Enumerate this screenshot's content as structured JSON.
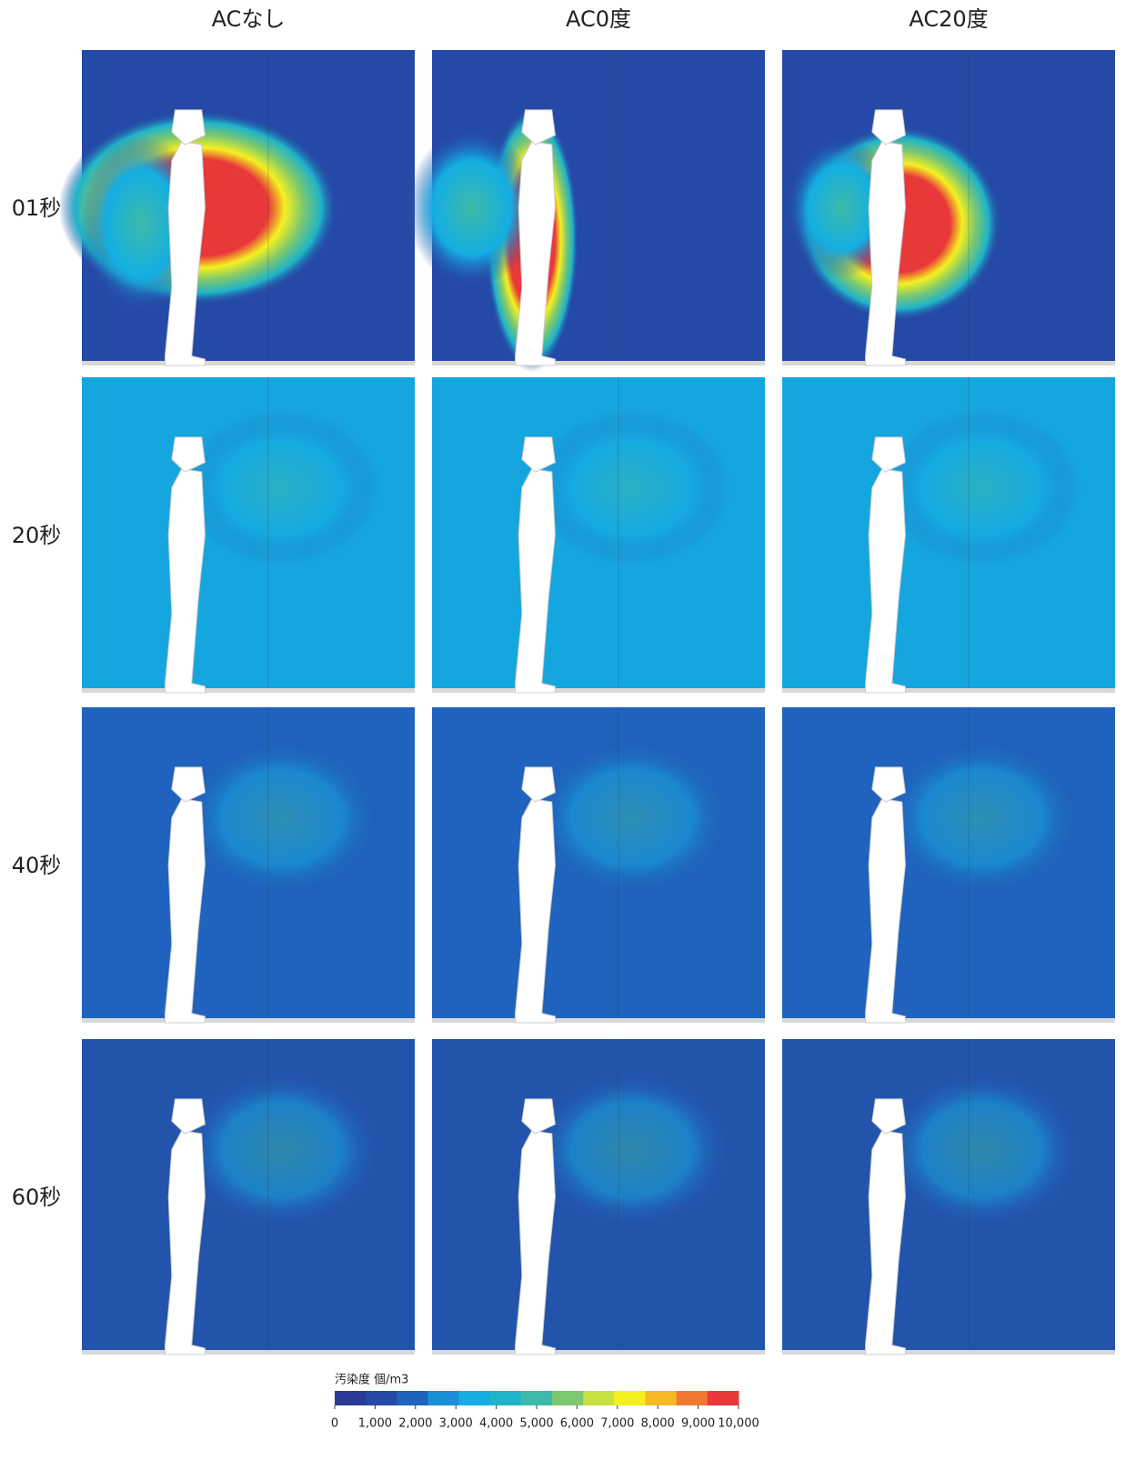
{
  "columns": [
    "ACなし",
    "AC0度",
    "AC20度"
  ],
  "rows": [
    "01秒",
    "20秒",
    "40秒",
    "60秒"
  ],
  "colorbar": {
    "label": "汚染度 個/m3",
    "colors": [
      "#2b3b95",
      "#2549a6",
      "#1f63be",
      "#1a8fd8",
      "#14aee3",
      "#1fb3c9",
      "#3dbaa8",
      "#7cc870",
      "#c8e040",
      "#f4f020",
      "#f6b825",
      "#f07830",
      "#e8383a"
    ],
    "ticks": [
      0,
      {
        "value": 1000,
        "label": "1,000"
      },
      {
        "value": 2000,
        "label": "2,000"
      },
      {
        "value": 3000,
        "label": "3,000"
      },
      {
        "value": 4000,
        "label": "4,000"
      },
      {
        "value": 5000,
        "label": "5,000"
      },
      {
        "value": 6000,
        "label": "6,000"
      },
      {
        "value": 7000,
        "label": "7,000"
      },
      {
        "value": 8000,
        "label": "8,000"
      },
      {
        "value": 9000,
        "label": "9,000"
      },
      {
        "value": 10000,
        "label": "10,000"
      }
    ]
  }
}
